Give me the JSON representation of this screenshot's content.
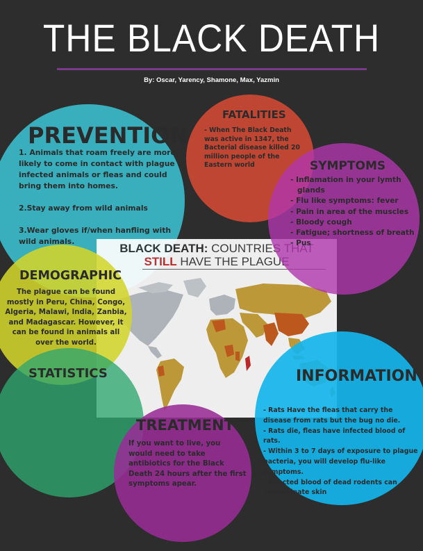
{
  "header": {
    "title": "THE BLACK DEATH",
    "byline": "By: Oscar, Yarency, Shamone, Max, Yazmin"
  },
  "prevention": {
    "heading": "PREVENTION",
    "items": [
      "1. Animals that roam freely are more likely to come in contact with plague infected animals or fleas and could bring them into homes.",
      "2.Stay away from wild animals",
      "3.Wear gloves if/when hanfling with wild animals."
    ]
  },
  "fatalities": {
    "heading": "FATALITIES",
    "body": "- When The Black Death was active in 1347, the Bacterial disease killed 20 million people of the Eastern world"
  },
  "symptoms": {
    "heading": "SYMPTOMS",
    "items": [
      "- Inflamation in your lymth glands",
      "- Flu like symptoms: fever",
      "- Pain in area of the muscles",
      "- Bloody cough",
      "- Fatigue; shortness of breath",
      "- Pus"
    ]
  },
  "map": {
    "title_part1": "BLACK DEATH:",
    "title_part2": " COUNTRIES THAT",
    "title_part3": "STILL",
    "title_part4": " HAVE THE PLAGUE"
  },
  "demographic": {
    "heading": "DEMOGRAPHIC",
    "body": "The plague can be found mostly in Peru, China, Congo, Algeria, Malawi, India, Zanbia, and Madagascar. However, it can be found in animals all over the world."
  },
  "statistics": {
    "heading": "STATISTICS"
  },
  "treatment": {
    "heading": "TREATMENT",
    "body": "If you want to live, you would need to take antibiotics for the Black Death 24 hours after the first symptoms apear."
  },
  "information": {
    "heading": "INFORMATION",
    "items": [
      "- Rats Have the fleas that carry the disease from rats but the bug no die.",
      "- Rats die, fleas have infected blood of rats.",
      "-  Within 3 to 7 days of exposure to plague bacteria, you will develop flu-like symptoms.",
      "- Infected blood of dead rodents can contaminate skin"
    ]
  },
  "colors": {
    "background": "#2d2d2d",
    "prevention": "#3bbac9",
    "fatalities": "#c74834",
    "symptoms": "#b036ae",
    "demographic": "#d3d52b",
    "statistics": "#2da66e",
    "treatment": "#982c96",
    "information": "#14b4ec",
    "accent_rule": "#7a3a8c"
  }
}
